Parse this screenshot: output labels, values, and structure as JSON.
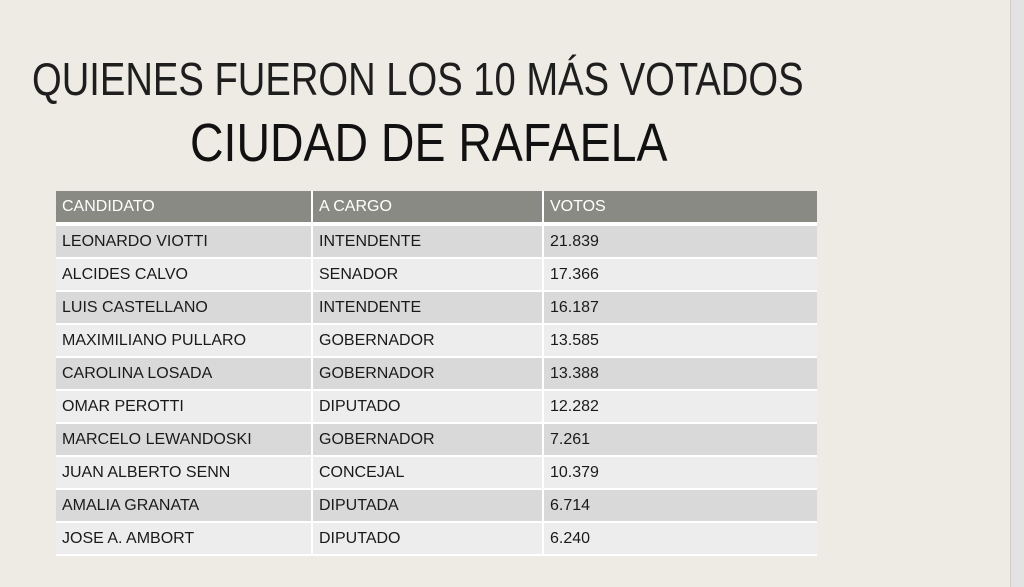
{
  "title_line1": "QUIENES FUERON LOS 10 MÁS VOTADOS",
  "title_line2": "CIUDAD DE RAFAELA",
  "table": {
    "headers": [
      "CANDIDATO",
      "A CARGO",
      "VOTOS"
    ],
    "rows": [
      [
        "LEONARDO VIOTTI",
        "INTENDENTE",
        "21.839"
      ],
      [
        "ALCIDES CALVO",
        "SENADOR",
        "17.366"
      ],
      [
        "LUIS CASTELLANO",
        "INTENDENTE",
        "16.187"
      ],
      [
        "MAXIMILIANO PULLARO",
        "GOBERNADOR",
        "13.585"
      ],
      [
        "CAROLINA LOSADA",
        "GOBERNADOR",
        "13.388"
      ],
      [
        "OMAR PEROTTI",
        "DIPUTADO",
        "12.282"
      ],
      [
        "MARCELO LEWANDOSKI",
        "GOBERNADOR",
        "7.261"
      ],
      [
        "JUAN ALBERTO SENN",
        "CONCEJAL",
        "10.379"
      ],
      [
        "AMALIA GRANATA",
        "DIPUTADA",
        "6.714"
      ],
      [
        "JOSE A. AMBORT",
        "DIPUTADO",
        "6.240"
      ]
    ]
  }
}
